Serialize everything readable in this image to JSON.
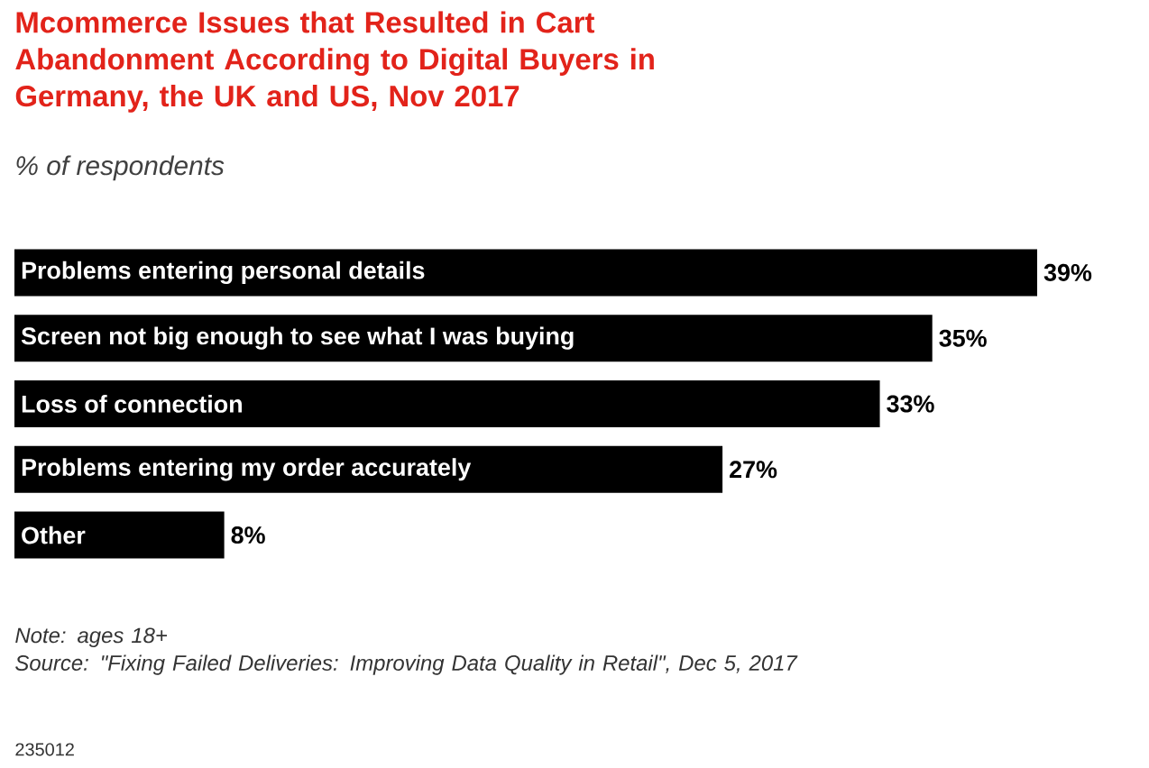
{
  "chart_data": {
    "type": "bar",
    "orientation": "horizontal",
    "title": "Mcommerce Issues that Resulted in Cart Abandonment According to Digital Buyers in Germany, the UK and US, Nov 2017",
    "subtitle": "% of respondents",
    "categories": [
      "Problems entering personal details",
      "Screen not big enough to see what I was buying",
      "Loss of connection",
      "Problems entering my order accurately",
      "Other"
    ],
    "values": [
      39,
      35,
      33,
      27,
      8
    ],
    "value_labels": [
      "39%",
      "35%",
      "33%",
      "27%",
      "8%"
    ],
    "color": "#000000",
    "annotations": [
      "Note: ages 18+",
      "Source: \"Fixing Failed Deliveries: Improving Data Quality in Retail\", Dec 5, 2017",
      "235012"
    ]
  }
}
